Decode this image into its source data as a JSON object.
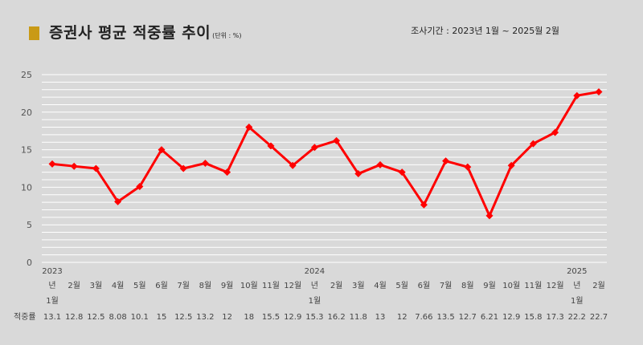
{
  "header": {
    "title": "증권사 평균 적중률 추이",
    "unit": "(단위 : %)",
    "period": "조사기간 : 2023년 1월 ~ 2025월 2월",
    "marker_color": "#c99a16"
  },
  "chart_data": {
    "type": "line",
    "title": "증권사 평균 적중률 추이",
    "ylim": [
      0,
      25
    ],
    "yticks": [
      0,
      5,
      10,
      15,
      20,
      25
    ],
    "grid": true,
    "line_color": "#ff0000",
    "categories": [
      "1월",
      "2월",
      "3월",
      "4월",
      "5월",
      "6월",
      "7월",
      "8월",
      "9월",
      "10월",
      "11월",
      "12월",
      "1월",
      "2월",
      "3월",
      "4월",
      "5월",
      "6월",
      "7월",
      "8월",
      "9월",
      "10월",
      "11월",
      "12월",
      "1월",
      "2월"
    ],
    "year_labels": [
      {
        "index": 0,
        "year": "2023"
      },
      {
        "index": 12,
        "year": "2024"
      },
      {
        "index": 24,
        "year": "2025"
      }
    ],
    "year_suffix": "년",
    "row_label": "적중률",
    "value_labels": [
      "13.1",
      "12.8",
      "12.5",
      "8.08",
      "10.1",
      "15",
      "12.5",
      "13.2",
      "12",
      "18",
      "15.5",
      "12.9",
      "15.3",
      "16.2",
      "11.8",
      "13",
      "12",
      "7.66",
      "13.5",
      "12.7",
      "6.21",
      "12.9",
      "15.8",
      "17.3",
      "22.2",
      "22.7"
    ],
    "series": [
      {
        "values": [
          13.1,
          12.8,
          12.5,
          8.08,
          10.1,
          15,
          12.5,
          13.2,
          12,
          18,
          15.5,
          12.9,
          15.3,
          16.2,
          11.8,
          13,
          12,
          7.66,
          13.5,
          12.7,
          6.21,
          12.9,
          15.8,
          17.3,
          22.2,
          22.7
        ]
      }
    ]
  }
}
